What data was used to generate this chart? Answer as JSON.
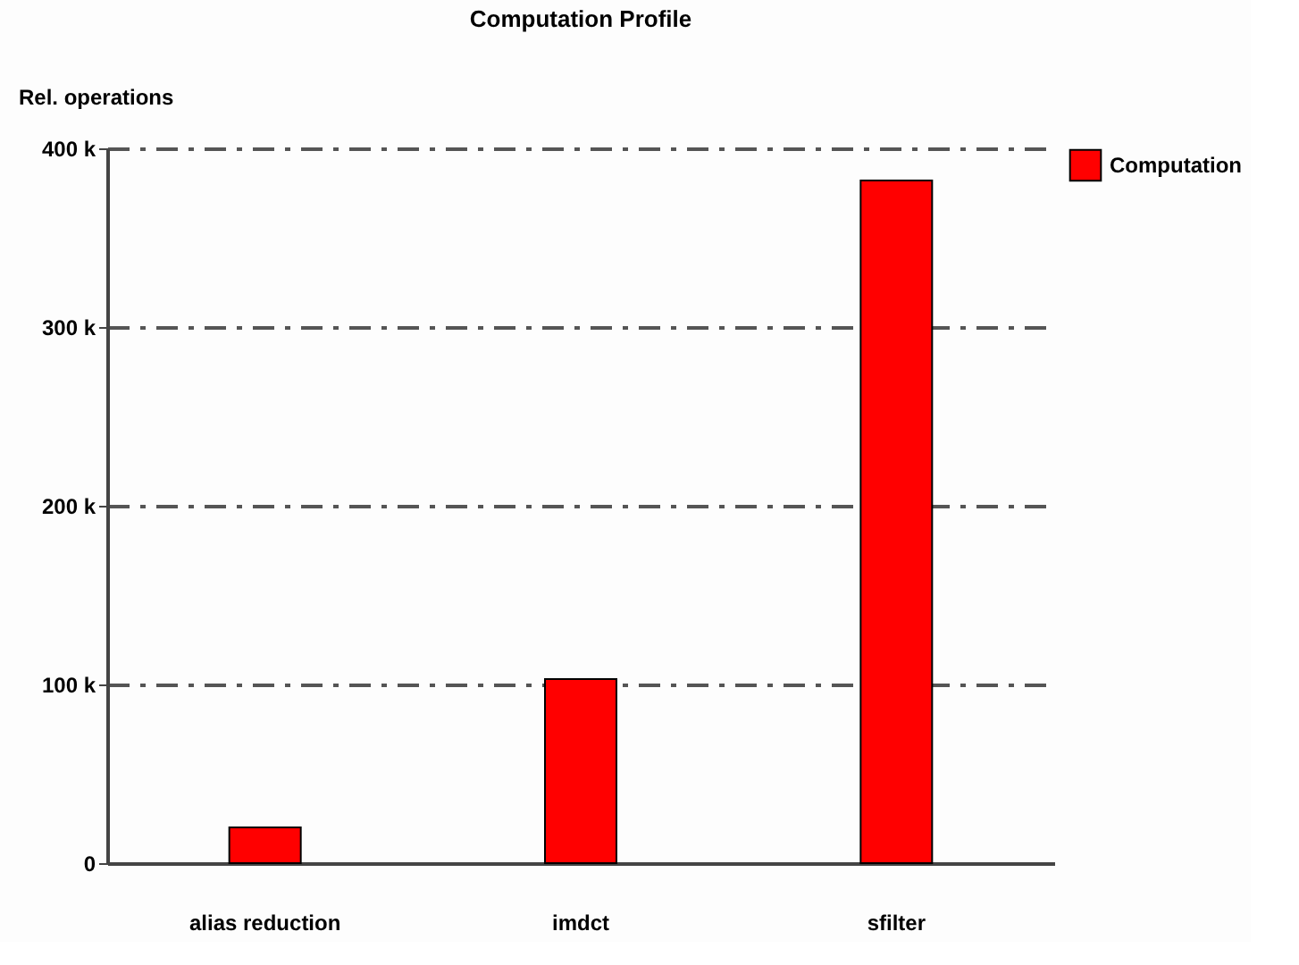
{
  "chart_data": {
    "type": "bar",
    "title": "Computation Profile",
    "ylabel": "Rel. operations",
    "categories": [
      "alias  reduction",
      "imdct",
      "sfilter"
    ],
    "series": [
      {
        "name": "Computation",
        "color": "#ff0000",
        "values": [
          20000,
          103000,
          382000
        ]
      }
    ],
    "ylim": [
      0,
      400000
    ],
    "yticks": [
      0,
      {
        "value": 100000,
        "label": "100 k"
      },
      {
        "value": 200000,
        "label": "200 k"
      },
      {
        "value": 300000,
        "label": "300 k"
      },
      {
        "value": 400000,
        "label": "400 k"
      }
    ],
    "grid": "y",
    "legend": "top right"
  }
}
